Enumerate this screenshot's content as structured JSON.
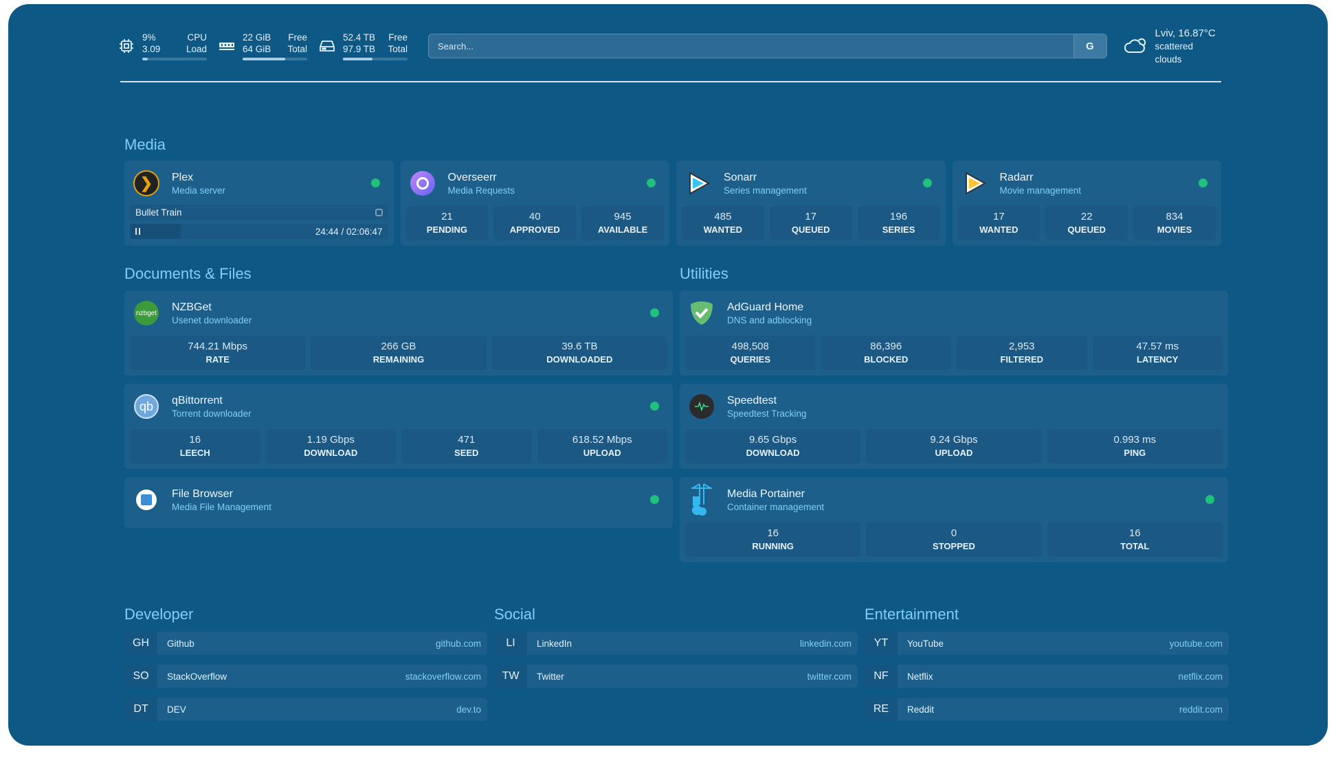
{
  "resources": {
    "cpu": {
      "value": "9%",
      "value_label": "CPU",
      "load": "3.09",
      "load_label": "Load",
      "usage_percent": 9
    },
    "memory": {
      "free": "22 GiB",
      "free_label": "Free",
      "total": "64 GiB",
      "total_label": "Total",
      "usage_percent": 66
    },
    "disk": {
      "free": "52.4 TB",
      "free_label": "Free",
      "total": "97.9 TB",
      "total_label": "Total",
      "usage_percent": 46
    }
  },
  "search": {
    "placeholder": "Search...",
    "engine_label": "G"
  },
  "weather": {
    "location_temp": "Lviv, 16.87°C",
    "condition": "scattered clouds"
  },
  "sections": {
    "media": "Media",
    "documents": "Documents & Files",
    "utilities": "Utilities",
    "developer": "Developer",
    "social": "Social",
    "entertainment": "Entertainment"
  },
  "status_color": "#1fc17b",
  "media": [
    {
      "name": "Plex",
      "desc": "Media server",
      "icon": "plex-icon",
      "now_playing": {
        "title": "Bullet Train",
        "time": "24:44 / 02:06:47",
        "progress_percent": 19.6
      }
    },
    {
      "name": "Overseerr",
      "desc": "Media Requests",
      "icon": "overseerr-icon",
      "stats": [
        {
          "v": "21",
          "l": "PENDING"
        },
        {
          "v": "40",
          "l": "APPROVED"
        },
        {
          "v": "945",
          "l": "AVAILABLE"
        }
      ]
    },
    {
      "name": "Sonarr",
      "desc": "Series management",
      "icon": "sonarr-icon",
      "stats": [
        {
          "v": "485",
          "l": "WANTED"
        },
        {
          "v": "17",
          "l": "QUEUED"
        },
        {
          "v": "196",
          "l": "SERIES"
        }
      ]
    },
    {
      "name": "Radarr",
      "desc": "Movie management",
      "icon": "radarr-icon",
      "stats": [
        {
          "v": "17",
          "l": "WANTED"
        },
        {
          "v": "22",
          "l": "QUEUED"
        },
        {
          "v": "834",
          "l": "MOVIES"
        }
      ]
    }
  ],
  "documents": [
    {
      "name": "NZBGet",
      "desc": "Usenet downloader",
      "icon": "nzbget-icon",
      "logo_text": "nzbget",
      "stats": [
        {
          "v": "744.21 Mbps",
          "l": "RATE"
        },
        {
          "v": "266 GB",
          "l": "REMAINING"
        },
        {
          "v": "39.6 TB",
          "l": "DOWNLOADED"
        }
      ]
    },
    {
      "name": "qBittorrent",
      "desc": "Torrent downloader",
      "icon": "qbittorrent-icon",
      "logo_text": "qb",
      "stats": [
        {
          "v": "16",
          "l": "LEECH"
        },
        {
          "v": "1.19 Gbps",
          "l": "DOWNLOAD"
        },
        {
          "v": "471",
          "l": "SEED"
        },
        {
          "v": "618.52 Mbps",
          "l": "UPLOAD"
        }
      ]
    },
    {
      "name": "File Browser",
      "desc": "Media File Management",
      "icon": "file-browser-icon",
      "stats": []
    }
  ],
  "utilities": [
    {
      "name": "AdGuard Home",
      "desc": "DNS and adblocking",
      "icon": "adguard-icon",
      "nodot": true,
      "stats": [
        {
          "v": "498,508",
          "l": "QUERIES"
        },
        {
          "v": "86,396",
          "l": "BLOCKED"
        },
        {
          "v": "2,953",
          "l": "FILTERED"
        },
        {
          "v": "47.57 ms",
          "l": "LATENCY"
        }
      ]
    },
    {
      "name": "Speedtest",
      "desc": "Speedtest Tracking",
      "icon": "speedtest-icon",
      "nodot": true,
      "stats": [
        {
          "v": "9.65 Gbps",
          "l": "DOWNLOAD"
        },
        {
          "v": "9.24 Gbps",
          "l": "UPLOAD"
        },
        {
          "v": "0.993 ms",
          "l": "PING"
        }
      ]
    },
    {
      "name": "Media Portainer",
      "desc": "Container management",
      "icon": "portainer-icon",
      "stats": [
        {
          "v": "16",
          "l": "RUNNING"
        },
        {
          "v": "0",
          "l": "STOPPED"
        },
        {
          "v": "16",
          "l": "TOTAL"
        }
      ]
    }
  ],
  "bookmarks": {
    "developer": [
      {
        "abbr": "GH",
        "name": "Github",
        "url": "github.com"
      },
      {
        "abbr": "SO",
        "name": "StackOverflow",
        "url": "stackoverflow.com"
      },
      {
        "abbr": "DT",
        "name": "DEV",
        "url": "dev.to"
      }
    ],
    "social": [
      {
        "abbr": "LI",
        "name": "LinkedIn",
        "url": "linkedin.com"
      },
      {
        "abbr": "TW",
        "name": "Twitter",
        "url": "twitter.com"
      }
    ],
    "entertainment": [
      {
        "abbr": "YT",
        "name": "YouTube",
        "url": "youtube.com"
      },
      {
        "abbr": "NF",
        "name": "Netflix",
        "url": "netflix.com"
      },
      {
        "abbr": "RE",
        "name": "Reddit",
        "url": "reddit.com"
      }
    ]
  }
}
